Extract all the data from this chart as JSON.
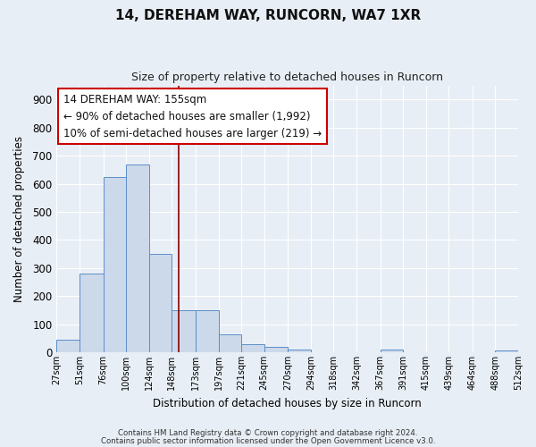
{
  "title": "14, DEREHAM WAY, RUNCORN, WA7 1XR",
  "subtitle": "Size of property relative to detached houses in Runcorn",
  "xlabel": "Distribution of detached houses by size in Runcorn",
  "ylabel": "Number of detached properties",
  "bar_color": "#ccd9ea",
  "bar_edge_color": "#5b8fc9",
  "background_color": "#e8eef5",
  "grid_color": "#ffffff",
  "ylim": [
    0,
    950
  ],
  "yticks": [
    0,
    100,
    200,
    300,
    400,
    500,
    600,
    700,
    800,
    900
  ],
  "bin_labels": [
    "27sqm",
    "51sqm",
    "76sqm",
    "100sqm",
    "124sqm",
    "148sqm",
    "173sqm",
    "197sqm",
    "221sqm",
    "245sqm",
    "270sqm",
    "294sqm",
    "318sqm",
    "342sqm",
    "367sqm",
    "391sqm",
    "415sqm",
    "439sqm",
    "464sqm",
    "488sqm",
    "512sqm"
  ],
  "bin_edges": [
    27,
    51,
    76,
    100,
    124,
    148,
    173,
    197,
    221,
    245,
    270,
    294,
    318,
    342,
    367,
    391,
    415,
    439,
    464,
    488,
    512
  ],
  "bin_values": [
    45,
    280,
    625,
    670,
    350,
    150,
    150,
    65,
    30,
    20,
    10,
    0,
    0,
    0,
    10,
    0,
    0,
    0,
    0,
    5
  ],
  "vline_x": 155,
  "vline_color": "#8b0000",
  "annotation_box_text": "14 DEREHAM WAY: 155sqm\n← 90% of detached houses are smaller (1,992)\n10% of semi-detached houses are larger (219) →",
  "footer_line1": "Contains HM Land Registry data © Crown copyright and database right 2024.",
  "footer_line2": "Contains public sector information licensed under the Open Government Licence v3.0."
}
